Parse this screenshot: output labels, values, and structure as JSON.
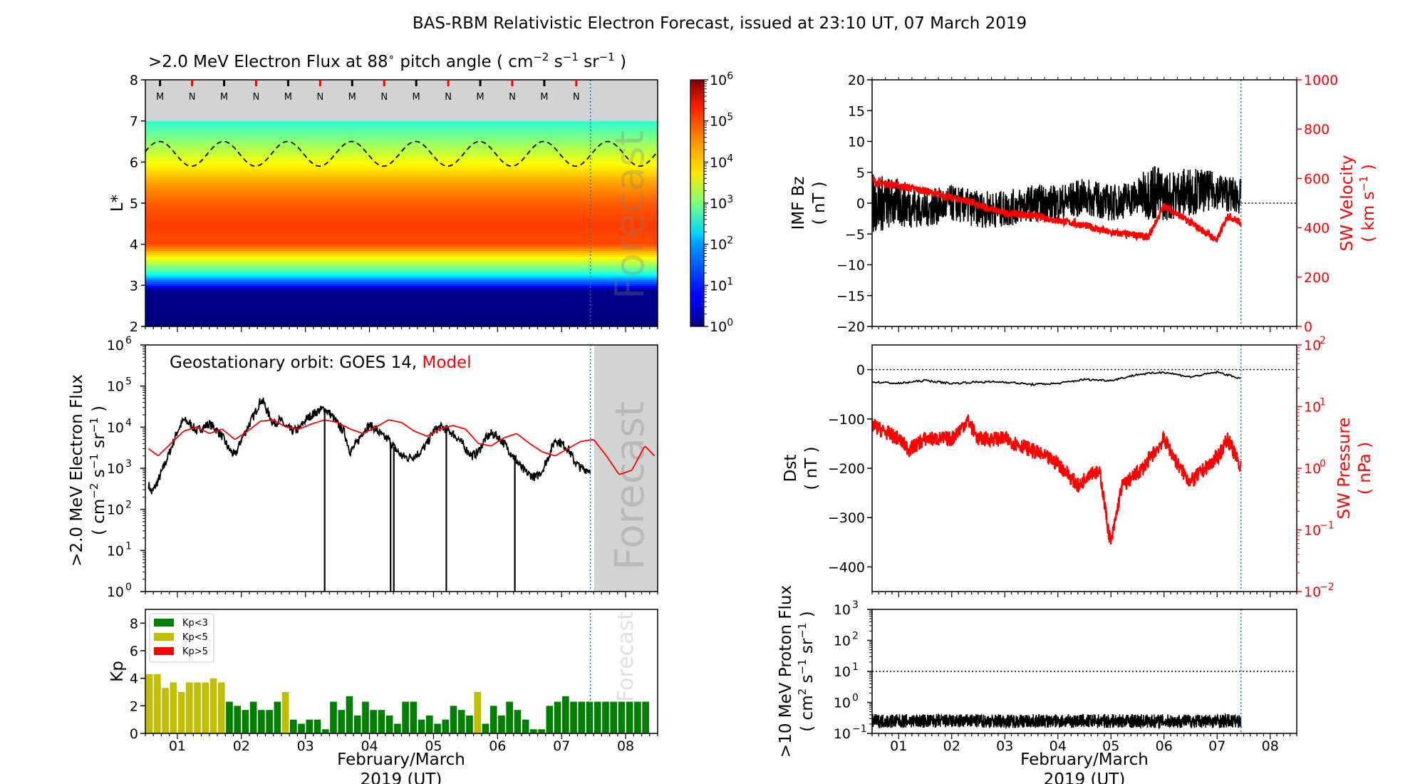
{
  "title": "BAS-RBM Relativistic Electron Forecast, issued at 23:10 UT, 07 March 2019",
  "x_tick_labels": [
    "01",
    "02",
    "03",
    "04",
    "05",
    "06",
    "07",
    "08"
  ],
  "x_label_line1": "February/March",
  "x_label_line2": "2019 (UT)",
  "forecast_text": "Forecast",
  "panels": {
    "heatmap": {
      "title_prefix": ">2.0 MeV Electron Flux at 88",
      "title_unit": "pitch angle ( cm",
      "title_end": " )",
      "ylabel": "L*",
      "yticks": [
        "2",
        "3",
        "4",
        "5",
        "6",
        "7",
        "8"
      ],
      "mn_markers": [
        "M",
        "N",
        "M",
        "N",
        "M",
        "N",
        "M",
        "N",
        "M",
        "N",
        "M",
        "N",
        "M",
        "N"
      ],
      "colorbar_ticks": [
        "10",
        "10",
        "10",
        "10",
        "10",
        "10",
        "10"
      ],
      "colorbar_exps": [
        "0",
        "1",
        "2",
        "3",
        "4",
        "5",
        "6"
      ]
    },
    "geo": {
      "annotation_prefix": "Geostationary orbit:   GOES 14,",
      "annotation_model": "Model",
      "ylabel_line1": ">2.0 MeV Electron Flux",
      "ylabel_line2": "( cm",
      "yticks_exp": [
        "0",
        "1",
        "2",
        "3",
        "4",
        "5",
        "6"
      ]
    },
    "kp": {
      "ylabel": "Kp",
      "yticks": [
        "0",
        "2",
        "4",
        "6",
        "8"
      ],
      "legend": [
        {
          "label": "Kp<3",
          "color": "#008000"
        },
        {
          "label": "Kp<5",
          "color": "#bfbf00"
        },
        {
          "label": "Kp>5",
          "color": "#ff0000"
        }
      ]
    },
    "imf": {
      "ylabel_line1": "IMF Bz",
      "ylabel_line2": "( nT )",
      "yticks": [
        "20",
        "15",
        "10",
        "5",
        "0",
        "−5",
        "−10",
        "−15",
        "−20"
      ],
      "right_ylabel_line1": "SW Velocity",
      "right_ylabel_line2": "( km s",
      "right_yticks": [
        "1000",
        "800",
        "600",
        "400",
        "200",
        "0"
      ]
    },
    "dst": {
      "ylabel_line1": "Dst",
      "ylabel_line2": "( nT )",
      "yticks": [
        "0",
        "−100",
        "−200",
        "−300",
        "−400"
      ],
      "right_ylabel_line1": "SW Pressure",
      "right_ylabel_line2": "( nPa )",
      "right_yticks_exp": [
        "2",
        "1",
        "0",
        "−1",
        "−2"
      ]
    },
    "proton": {
      "ylabel_line1": ">10 MeV Proton Flux",
      "ylabel_line2": "( cm",
      "yticks_exp": [
        "3",
        "2",
        "1",
        "0",
        "−1"
      ]
    }
  },
  "chart_data": [
    {
      "type": "heatmap",
      "title": ">2.0 MeV Electron Flux at 88° pitch angle ( cm−2 s−1 sr−1 )",
      "ylabel": "L*",
      "ylim": [
        2,
        8
      ],
      "xlim_days": [
        "31 Jan 12:00",
        "08 Mar 12:00"
      ],
      "colorbar_range_log10": [
        0,
        6
      ],
      "l_star_profile": [
        [
          2.0,
          0.0
        ],
        [
          2.9,
          0.1
        ],
        [
          3.0,
          1.0
        ],
        [
          3.1,
          1.3
        ],
        [
          3.3,
          2.5
        ],
        [
          3.6,
          3.5
        ],
        [
          4.0,
          4.8
        ],
        [
          4.5,
          4.9
        ],
        [
          5.0,
          4.7
        ],
        [
          5.5,
          4.3
        ],
        [
          6.0,
          3.7
        ],
        [
          6.5,
          3.1
        ],
        [
          7.0,
          2.5
        ]
      ],
      "dashed_contour_L": {
        "min": 5.9,
        "max": 6.5,
        "period_days": 1
      }
    },
    {
      "type": "line",
      "title": "Geostationary orbit: GOES 14, Model",
      "ylabel": ">2.0 MeV Electron Flux ( cm−2 s−1 sr−1 )",
      "y_scale": "log",
      "ylim": [
        1,
        1000000
      ],
      "series": [
        {
          "name": "GOES 14",
          "color": "#000000",
          "x": [
            0.55,
            0.6,
            0.7,
            0.8,
            0.9,
            1.0,
            1.1,
            1.2,
            1.3,
            1.4,
            1.5,
            1.6,
            1.7,
            1.8,
            1.9,
            2.0,
            2.1,
            2.2,
            2.3,
            2.35,
            2.4,
            2.5,
            2.6,
            2.7,
            2.8,
            2.9,
            3.0,
            3.1,
            3.2,
            3.3,
            3.4,
            3.5,
            3.6,
            3.7,
            3.8,
            3.9,
            4.0,
            4.1,
            4.2,
            4.3,
            4.4,
            4.5,
            4.6,
            4.7,
            4.8,
            4.9,
            5.0,
            5.1,
            5.2,
            5.3,
            5.4,
            5.5,
            5.6,
            5.7,
            5.8,
            5.9,
            6.0,
            6.1,
            6.2,
            6.3,
            6.4,
            6.5,
            6.6,
            6.7,
            6.8,
            6.9,
            7.0,
            7.1,
            7.2,
            7.3,
            7.45
          ],
          "values": [
            400,
            250,
            500,
            1200,
            3000,
            8000,
            15000,
            12000,
            8000,
            10000,
            12000,
            9000,
            6000,
            3000,
            2000,
            5000,
            10000,
            20000,
            45000,
            40000,
            25000,
            12000,
            15000,
            10000,
            8000,
            9000,
            15000,
            20000,
            25000,
            28000,
            20000,
            12000,
            8000,
            2500,
            4000,
            8000,
            11000,
            9000,
            6000,
            5000,
            3000,
            2000,
            1800,
            2000,
            2500,
            4000,
            8000,
            10000,
            9000,
            7000,
            5000,
            3000,
            2000,
            2500,
            5000,
            7000,
            6000,
            4000,
            2500,
            1500,
            900,
            700,
            600,
            900,
            2000,
            5000,
            4000,
            3000,
            1500,
            1000,
            900
          ]
        },
        {
          "name": "Model",
          "color": "#ff0000",
          "x": [
            0.55,
            0.7,
            0.9,
            1.1,
            1.3,
            1.5,
            1.7,
            1.9,
            2.1,
            2.3,
            2.5,
            2.7,
            2.9,
            3.1,
            3.3,
            3.5,
            3.7,
            3.9,
            4.1,
            4.3,
            4.5,
            4.7,
            4.9,
            5.1,
            5.3,
            5.5,
            5.7,
            5.9,
            6.1,
            6.3,
            6.5,
            6.7,
            6.9,
            7.1,
            7.3,
            7.5,
            7.7,
            7.9,
            8.1,
            8.3,
            8.45
          ],
          "values": [
            3000,
            2000,
            4000,
            8000,
            10000,
            7000,
            9000,
            5000,
            8000,
            14000,
            15000,
            10000,
            9000,
            12000,
            15000,
            13000,
            9000,
            7000,
            10000,
            15000,
            13000,
            8000,
            6000,
            9000,
            11000,
            9000,
            4000,
            3500,
            5500,
            7000,
            4000,
            2500,
            2000,
            3000,
            4500,
            5000,
            2000,
            700,
            900,
            3500,
            2000
          ]
        }
      ],
      "dropouts_x": [
        3.3,
        4.33,
        4.38,
        5.2,
        6.27
      ]
    },
    {
      "type": "bar",
      "title": "Kp",
      "ylabel": "Kp",
      "ylim": [
        0,
        9
      ],
      "values": [
        4.3,
        4.3,
        3.3,
        3.7,
        3.0,
        3.7,
        3.7,
        3.7,
        4.0,
        3.7,
        2.3,
        2.0,
        1.7,
        2.3,
        1.7,
        1.7,
        2.3,
        3.0,
        1.0,
        0.7,
        1.0,
        1.0,
        0.3,
        2.3,
        1.7,
        2.7,
        1.3,
        2.3,
        1.7,
        1.7,
        1.3,
        0.7,
        2.3,
        2.3,
        1.0,
        1.3,
        0.7,
        1.0,
        2.0,
        1.7,
        1.3,
        3.0,
        0.7,
        2.0,
        1.3,
        2.3,
        1.7,
        1.0,
        0.3,
        0.3,
        2.0,
        2.3,
        2.7,
        2.3,
        2.3,
        2.3,
        2.3,
        2.3,
        2.3,
        2.3,
        2.3,
        2.3,
        2.3
      ],
      "colors": [
        "#bfbf00",
        "#bfbf00",
        "#bfbf00",
        "#bfbf00",
        "#bfbf00",
        "#bfbf00",
        "#bfbf00",
        "#bfbf00",
        "#bfbf00",
        "#bfbf00",
        "#008000",
        "#008000",
        "#008000",
        "#008000",
        "#008000",
        "#008000",
        "#008000",
        "#bfbf00",
        "#008000",
        "#008000",
        "#008000",
        "#008000",
        "#008000",
        "#008000",
        "#008000",
        "#008000",
        "#008000",
        "#008000",
        "#008000",
        "#008000",
        "#008000",
        "#008000",
        "#008000",
        "#008000",
        "#008000",
        "#008000",
        "#008000",
        "#008000",
        "#008000",
        "#008000",
        "#008000",
        "#bfbf00",
        "#008000",
        "#008000",
        "#008000",
        "#008000",
        "#008000",
        "#008000",
        "#008000",
        "#008000",
        "#008000",
        "#008000",
        "#008000",
        "#008000",
        "#008000",
        "#008000",
        "#008000",
        "#008000",
        "#008000",
        "#008000",
        "#008000",
        "#008000",
        "#008000"
      ]
    },
    {
      "type": "line",
      "title": "IMF Bz / SW Velocity",
      "ylabel": "IMF Bz ( nT )",
      "ylim": [
        -20,
        20
      ],
      "right_ylabel": "SW Velocity ( km s−1 )",
      "right_ylim": [
        0,
        1000
      ],
      "series": [
        {
          "name": "IMF Bz",
          "color": "#000000",
          "axis": "left",
          "x": [
            0.5,
            1.0,
            1.5,
            2.0,
            2.5,
            3.0,
            3.5,
            4.0,
            4.5,
            5.0,
            5.5,
            5.8,
            6.0,
            6.5,
            7.0,
            7.45
          ],
          "values": [
            0,
            0,
            -1,
            0,
            -1,
            -1,
            0,
            0,
            1,
            0,
            1,
            2,
            1,
            2,
            2,
            1
          ],
          "amplitude": [
            5,
            4,
            3,
            3,
            3,
            3,
            3,
            3,
            3,
            3,
            3,
            5,
            4,
            4,
            3,
            3
          ]
        },
        {
          "name": "SW Velocity",
          "color": "#ff0000",
          "axis": "right",
          "x": [
            0.5,
            0.7,
            1.0,
            1.5,
            2.0,
            2.3,
            2.5,
            3.0,
            3.5,
            4.0,
            4.5,
            5.0,
            5.5,
            5.7,
            6.0,
            6.5,
            7.0,
            7.2,
            7.45
          ],
          "values": [
            590,
            580,
            570,
            550,
            520,
            510,
            490,
            460,
            450,
            430,
            410,
            380,
            370,
            360,
            490,
            420,
            350,
            450,
            420
          ]
        }
      ],
      "reference_line_bz": 0
    },
    {
      "type": "line",
      "title": "Dst / SW Pressure",
      "ylabel": "Dst ( nT )",
      "ylim": [
        -450,
        50
      ],
      "right_ylabel": "SW Pressure ( nPa )",
      "right_y_scale": "log",
      "right_ylim": [
        0.01,
        100
      ],
      "series": [
        {
          "name": "Dst",
          "color": "#000000",
          "axis": "left",
          "x": [
            0.5,
            1.0,
            1.5,
            2.0,
            2.5,
            3.0,
            3.5,
            4.0,
            4.5,
            5.0,
            5.5,
            6.0,
            6.5,
            7.0,
            7.45
          ],
          "values": [
            -25,
            -28,
            -22,
            -28,
            -25,
            -25,
            -30,
            -28,
            -20,
            -22,
            -10,
            -5,
            -15,
            -5,
            -18
          ]
        },
        {
          "name": "SW Pressure",
          "color": "#ff0000",
          "axis": "right",
          "x": [
            0.5,
            1.0,
            1.2,
            1.5,
            2.0,
            2.3,
            2.5,
            3.0,
            3.5,
            4.0,
            4.4,
            4.6,
            4.8,
            4.95,
            5.0,
            5.2,
            5.6,
            6.0,
            6.3,
            6.5,
            7.0,
            7.2,
            7.45
          ],
          "values": [
            5,
            3,
            2,
            3,
            3,
            6,
            3,
            3,
            2,
            1.2,
            0.5,
            0.9,
            0.8,
            0.1,
            0.06,
            0.5,
            1,
            3,
            1,
            0.6,
            1.5,
            3,
            1
          ]
        }
      ],
      "reference_line_dst": 0
    },
    {
      "type": "line",
      "title": ">10 MeV Proton Flux",
      "ylabel": ">10 MeV Proton Flux ( cm2 s−1 sr−1 )",
      "y_scale": "log",
      "ylim": [
        0.1,
        1000
      ],
      "series": [
        {
          "name": "Proton Flux",
          "color": "#000000",
          "x": [
            0.5,
            7.45
          ],
          "values": [
            0.25,
            0.25
          ]
        }
      ],
      "threshold": 10
    }
  ]
}
